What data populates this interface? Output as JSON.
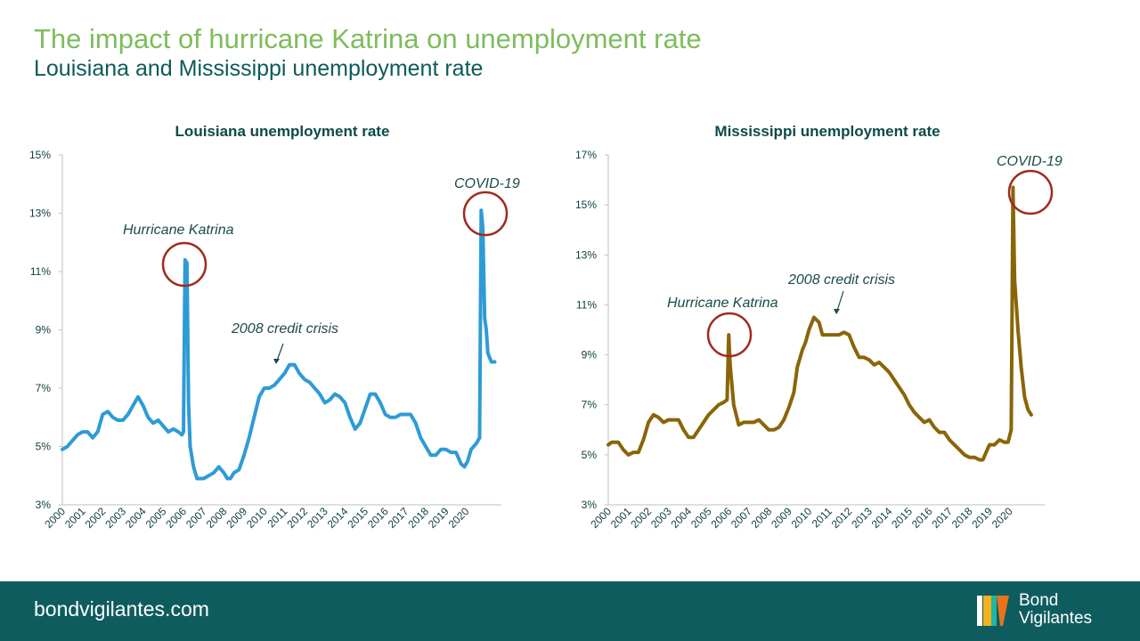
{
  "header": {
    "title": "The impact of hurricane Katrina on unemployment rate",
    "subtitle": "Louisiana and Mississippi unemployment rate"
  },
  "footer": {
    "url": "bondvigilantes.com",
    "brand_line1": "Bond",
    "brand_line2": "Vigilantes"
  },
  "colors": {
    "louisiana": "#2e9bd6",
    "mississippi": "#8a6508",
    "circle": "#a02a20",
    "footer_bg": "#0f5c5e"
  },
  "chart_data": [
    {
      "type": "line",
      "title": "Louisiana unemployment rate",
      "yticks": [
        "15%",
        "13%",
        "11%",
        "9%",
        "7%",
        "5%",
        "3%"
      ],
      "ylim": [
        3,
        15
      ],
      "xlim": [
        2000,
        2021.75
      ],
      "xticks": [
        "2000",
        "2001",
        "2002",
        "2003",
        "2004",
        "2005",
        "2006",
        "2007",
        "2008",
        "2009",
        "2010",
        "2011",
        "2012",
        "2013",
        "2014",
        "2015",
        "2016",
        "2017",
        "2018",
        "2019",
        "2020"
      ],
      "series": [
        {
          "values": [
            [
              2000,
              4.9
            ],
            [
              2000.25,
              5.0
            ],
            [
              2000.5,
              5.2
            ],
            [
              2000.75,
              5.4
            ],
            [
              2001,
              5.5
            ],
            [
              2001.25,
              5.5
            ],
            [
              2001.5,
              5.3
            ],
            [
              2001.75,
              5.5
            ],
            [
              2002,
              6.1
            ],
            [
              2002.25,
              6.2
            ],
            [
              2002.5,
              6.0
            ],
            [
              2002.75,
              5.9
            ],
            [
              2003,
              5.9
            ],
            [
              2003.25,
              6.1
            ],
            [
              2003.5,
              6.4
            ],
            [
              2003.75,
              6.7
            ],
            [
              2004,
              6.4
            ],
            [
              2004.25,
              6.0
            ],
            [
              2004.5,
              5.8
            ],
            [
              2004.75,
              5.9
            ],
            [
              2005,
              5.7
            ],
            [
              2005.25,
              5.5
            ],
            [
              2005.5,
              5.6
            ],
            [
              2005.75,
              5.5
            ],
            [
              2005.92,
              5.4
            ],
            [
              2006.0,
              5.5
            ],
            [
              2006.08,
              11.4
            ],
            [
              2006.17,
              11.3
            ],
            [
              2006.25,
              6.5
            ],
            [
              2006.33,
              5.0
            ],
            [
              2006.5,
              4.3
            ],
            [
              2006.67,
              3.9
            ],
            [
              2007,
              3.9
            ],
            [
              2007.25,
              4.0
            ],
            [
              2007.5,
              4.1
            ],
            [
              2007.75,
              4.3
            ],
            [
              2008,
              4.1
            ],
            [
              2008.17,
              3.9
            ],
            [
              2008.33,
              3.9
            ],
            [
              2008.5,
              4.1
            ],
            [
              2008.75,
              4.2
            ],
            [
              2009,
              4.7
            ],
            [
              2009.25,
              5.3
            ],
            [
              2009.5,
              6.0
            ],
            [
              2009.75,
              6.7
            ],
            [
              2010,
              7.0
            ],
            [
              2010.25,
              7.0
            ],
            [
              2010.5,
              7.1
            ],
            [
              2010.75,
              7.3
            ],
            [
              2011,
              7.5
            ],
            [
              2011.25,
              7.8
            ],
            [
              2011.5,
              7.8
            ],
            [
              2011.75,
              7.5
            ],
            [
              2012,
              7.3
            ],
            [
              2012.25,
              7.2
            ],
            [
              2012.5,
              7.0
            ],
            [
              2012.75,
              6.8
            ],
            [
              2013,
              6.5
            ],
            [
              2013.25,
              6.6
            ],
            [
              2013.5,
              6.8
            ],
            [
              2013.75,
              6.7
            ],
            [
              2014,
              6.5
            ],
            [
              2014.25,
              6.0
            ],
            [
              2014.5,
              5.6
            ],
            [
              2014.75,
              5.8
            ],
            [
              2015,
              6.3
            ],
            [
              2015.25,
              6.8
            ],
            [
              2015.5,
              6.8
            ],
            [
              2015.75,
              6.5
            ],
            [
              2016,
              6.1
            ],
            [
              2016.25,
              6.0
            ],
            [
              2016.5,
              6.0
            ],
            [
              2016.75,
              6.1
            ],
            [
              2017,
              6.1
            ],
            [
              2017.25,
              6.1
            ],
            [
              2017.5,
              5.8
            ],
            [
              2017.75,
              5.3
            ],
            [
              2018,
              5.0
            ],
            [
              2018.25,
              4.7
            ],
            [
              2018.5,
              4.7
            ],
            [
              2018.75,
              4.9
            ],
            [
              2019,
              4.9
            ],
            [
              2019.25,
              4.8
            ],
            [
              2019.5,
              4.8
            ],
            [
              2019.75,
              4.4
            ],
            [
              2019.92,
              4.3
            ],
            [
              2020.08,
              4.5
            ],
            [
              2020.25,
              4.9
            ],
            [
              2020.5,
              5.1
            ],
            [
              2020.67,
              5.3
            ],
            [
              2020.75,
              13.1
            ],
            [
              2020.83,
              12.5
            ],
            [
              2020.92,
              9.4
            ],
            [
              2021,
              9.0
            ],
            [
              2021.08,
              8.2
            ],
            [
              2021.25,
              7.9
            ],
            [
              2021.42,
              7.9
            ]
          ]
        }
      ],
      "annotations": [
        {
          "label": "Hurricane Katrina"
        },
        {
          "label": "2008 credit crisis"
        },
        {
          "label": "COVID-19"
        }
      ]
    },
    {
      "type": "line",
      "title": "Mississippi unemployment rate",
      "yticks": [
        "17%",
        "15%",
        "13%",
        "11%",
        "9%",
        "7%",
        "5%",
        "3%"
      ],
      "ylim": [
        3,
        17
      ],
      "xlim": [
        2000,
        2021.75
      ],
      "xticks": [
        "2000",
        "2001",
        "2002",
        "2003",
        "2004",
        "2005",
        "2006",
        "2007",
        "2008",
        "2009",
        "2010",
        "2011",
        "2012",
        "2013",
        "2014",
        "2015",
        "2016",
        "2017",
        "2018",
        "2019",
        "2020"
      ],
      "series": [
        {
          "values": [
            [
              2000,
              5.4
            ],
            [
              2000.17,
              5.5
            ],
            [
              2000.5,
              5.5
            ],
            [
              2000.75,
              5.2
            ],
            [
              2001,
              5.0
            ],
            [
              2001.25,
              5.1
            ],
            [
              2001.5,
              5.1
            ],
            [
              2001.75,
              5.6
            ],
            [
              2002,
              6.3
            ],
            [
              2002.25,
              6.6
            ],
            [
              2002.5,
              6.5
            ],
            [
              2002.75,
              6.3
            ],
            [
              2003,
              6.4
            ],
            [
              2003.25,
              6.4
            ],
            [
              2003.5,
              6.4
            ],
            [
              2003.75,
              6.0
            ],
            [
              2004,
              5.7
            ],
            [
              2004.25,
              5.7
            ],
            [
              2004.5,
              6.0
            ],
            [
              2004.75,
              6.3
            ],
            [
              2005,
              6.6
            ],
            [
              2005.25,
              6.8
            ],
            [
              2005.5,
              7.0
            ],
            [
              2005.75,
              7.1
            ],
            [
              2005.92,
              7.2
            ],
            [
              2006.0,
              9.8
            ],
            [
              2006.08,
              8.5
            ],
            [
              2006.25,
              7.0
            ],
            [
              2006.5,
              6.2
            ],
            [
              2006.75,
              6.3
            ],
            [
              2007,
              6.3
            ],
            [
              2007.25,
              6.3
            ],
            [
              2007.5,
              6.4
            ],
            [
              2007.75,
              6.2
            ],
            [
              2008,
              6.0
            ],
            [
              2008.25,
              6.0
            ],
            [
              2008.5,
              6.1
            ],
            [
              2008.75,
              6.4
            ],
            [
              2009,
              6.9
            ],
            [
              2009.25,
              7.5
            ],
            [
              2009.42,
              8.5
            ],
            [
              2009.67,
              9.2
            ],
            [
              2009.83,
              9.5
            ],
            [
              2010,
              10.0
            ],
            [
              2010.25,
              10.5
            ],
            [
              2010.5,
              10.3
            ],
            [
              2010.67,
              9.8
            ],
            [
              2011,
              9.8
            ],
            [
              2011.25,
              9.8
            ],
            [
              2011.5,
              9.8
            ],
            [
              2011.75,
              9.9
            ],
            [
              2012,
              9.8
            ],
            [
              2012.25,
              9.3
            ],
            [
              2012.5,
              8.9
            ],
            [
              2012.75,
              8.9
            ],
            [
              2013,
              8.8
            ],
            [
              2013.25,
              8.6
            ],
            [
              2013.5,
              8.7
            ],
            [
              2013.75,
              8.5
            ],
            [
              2014,
              8.3
            ],
            [
              2014.25,
              8.0
            ],
            [
              2014.5,
              7.7
            ],
            [
              2014.75,
              7.4
            ],
            [
              2015,
              7.0
            ],
            [
              2015.25,
              6.7
            ],
            [
              2015.5,
              6.5
            ],
            [
              2015.75,
              6.3
            ],
            [
              2016,
              6.4
            ],
            [
              2016.25,
              6.1
            ],
            [
              2016.5,
              5.9
            ],
            [
              2016.75,
              5.9
            ],
            [
              2017,
              5.6
            ],
            [
              2017.25,
              5.4
            ],
            [
              2017.5,
              5.2
            ],
            [
              2017.75,
              5.0
            ],
            [
              2018,
              4.9
            ],
            [
              2018.25,
              4.9
            ],
            [
              2018.5,
              4.8
            ],
            [
              2018.67,
              4.8
            ],
            [
              2018.83,
              5.1
            ],
            [
              2019,
              5.4
            ],
            [
              2019.25,
              5.4
            ],
            [
              2019.5,
              5.6
            ],
            [
              2019.75,
              5.5
            ],
            [
              2019.92,
              5.5
            ],
            [
              2020.08,
              6.0
            ],
            [
              2020.17,
              15.7
            ],
            [
              2020.25,
              12.0
            ],
            [
              2020.42,
              10.0
            ],
            [
              2020.58,
              8.5
            ],
            [
              2020.75,
              7.3
            ],
            [
              2020.92,
              6.8
            ],
            [
              2021.08,
              6.6
            ]
          ]
        }
      ],
      "annotations": [
        {
          "label": "Hurricane Katrina"
        },
        {
          "label": "2008 credit crisis"
        },
        {
          "label": "COVID-19"
        }
      ]
    }
  ]
}
